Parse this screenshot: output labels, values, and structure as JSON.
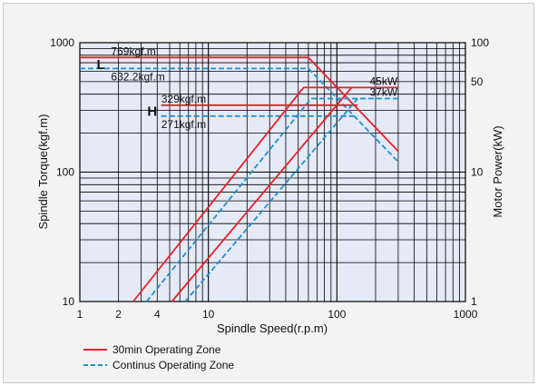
{
  "chart_data": {
    "type": "line",
    "xlabel": "Spindle Speed(r.p.m)",
    "ylabel_left": "Spindle Torque(kgf.m)",
    "ylabel_right": "Motor Power(kW)",
    "x_scale": "log",
    "y_scale": "log",
    "xlim": [
      1,
      1000
    ],
    "ylim_left": [
      10,
      1000
    ],
    "ylim_right": [
      1,
      100
    ],
    "x_ticks": [
      "1",
      "2",
      "4",
      "10",
      "100",
      "1000"
    ],
    "y_ticks_left": [
      "10",
      "100",
      "1000"
    ],
    "y_ticks_right": [
      "1",
      "10",
      "50",
      "100"
    ],
    "grid": true,
    "legend_position": "bottom-left",
    "colors": {
      "operating_30min": "#e8202a",
      "continuous": "#1e8fd0",
      "plot_bg": "#e4eaf6",
      "grid": "#000000"
    },
    "series": [
      {
        "name": "30min Operating Zone",
        "axis": "left",
        "style": "solid",
        "label": "L",
        "x": [
          1,
          60,
          300
        ],
        "y": [
          769,
          769,
          145
        ]
      },
      {
        "name": "Continus Operating Zone",
        "axis": "left",
        "style": "dashed",
        "label": "L",
        "x": [
          1,
          60,
          300
        ],
        "y": [
          632.2,
          632.2,
          120
        ]
      },
      {
        "name": "30min Operating Zone",
        "axis": "left",
        "style": "solid",
        "label": "H",
        "x": [
          4.3,
          145
        ],
        "y": [
          329,
          329
        ]
      },
      {
        "name": "Continus Operating Zone",
        "axis": "left",
        "style": "dashed",
        "label": "H",
        "x": [
          4.3,
          145
        ],
        "y": [
          271,
          271
        ]
      },
      {
        "name": "30min Operating Zone",
        "axis": "right",
        "style": "solid",
        "x": [
          2.6,
          55,
          300
        ],
        "y": [
          1,
          45,
          45
        ]
      },
      {
        "name": "Continus Operating Zone",
        "axis": "right",
        "style": "dashed",
        "x": [
          3.3,
          63,
          300
        ],
        "y": [
          1,
          37,
          37
        ]
      },
      {
        "name": "30min Operating Zone",
        "axis": "right",
        "style": "solid",
        "x": [
          5.2,
          130
        ],
        "y": [
          1,
          45
        ]
      },
      {
        "name": "Continus Operating Zone",
        "axis": "right",
        "style": "dashed",
        "x": [
          6.6,
          145
        ],
        "y": [
          1,
          37
        ]
      }
    ],
    "annotations": [
      {
        "text": "769kgf.m",
        "x": 1.75,
        "y": 769,
        "axis": "left"
      },
      {
        "text": "632.2kgf.m",
        "x": 1.75,
        "y": 632.2,
        "axis": "left"
      },
      {
        "text": "329kgf.m",
        "x": 4.3,
        "y": 329,
        "axis": "left"
      },
      {
        "text": "271kgf.m",
        "x": 4.3,
        "y": 271,
        "axis": "left"
      },
      {
        "text": "45kW",
        "x": 180,
        "y": 45,
        "axis": "right"
      },
      {
        "text": "37kW",
        "x": 180,
        "y": 37,
        "axis": "right"
      },
      {
        "text": "L",
        "x": 1.35,
        "y": 690,
        "axis": "left"
      },
      {
        "text": "H",
        "x": 3.35,
        "y": 300,
        "axis": "left"
      }
    ],
    "legend": [
      {
        "label": "30min Operating Zone",
        "style": "solid",
        "color": "#e8202a"
      },
      {
        "label": "Continus Operating Zone",
        "style": "dashed",
        "color": "#1e8fd0"
      }
    ]
  }
}
